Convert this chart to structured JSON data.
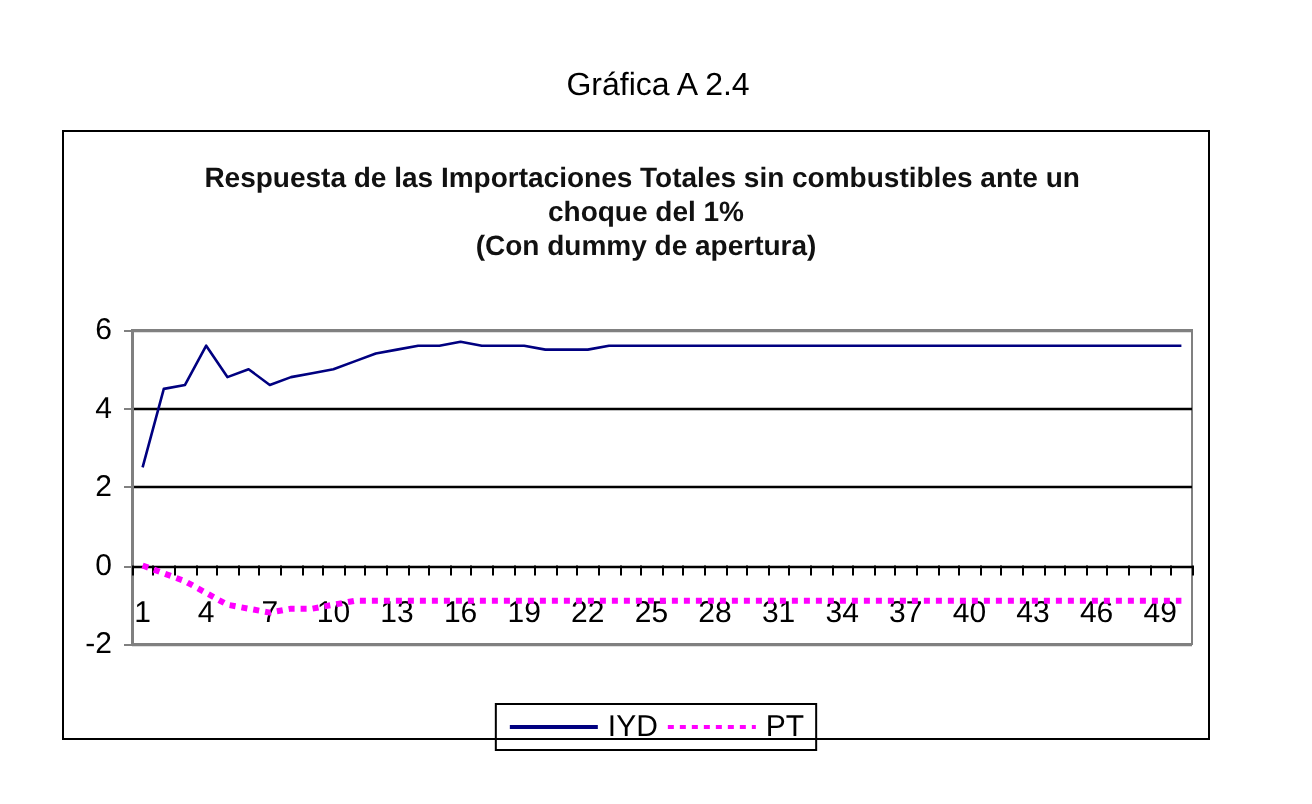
{
  "chart_data": {
    "type": "line",
    "title": "Respuesta de las Importaciones Totales sin combustibles ante un choque del 1%",
    "subtitle": "(Con dummy de apertura)",
    "annotations": [
      "Gráfica A 2.4"
    ],
    "categories": [
      "1",
      null,
      null,
      "4",
      null,
      null,
      "7",
      null,
      null,
      "10",
      null,
      null,
      "13",
      null,
      null,
      "16",
      null,
      null,
      "19",
      null,
      null,
      "22",
      null,
      null,
      "25",
      null,
      null,
      "28",
      null,
      null,
      "31",
      null,
      null,
      "34",
      null,
      null,
      "37",
      null,
      null,
      "40",
      null,
      null,
      "43",
      null,
      null,
      "46",
      null,
      null,
      "49",
      null
    ],
    "series": [
      {
        "name": "IYD",
        "color": "#000080",
        "line_style": "solid",
        "values": [
          2.5,
          4.5,
          4.6,
          5.6,
          4.8,
          5.0,
          4.6,
          4.8,
          4.9,
          5.0,
          5.2,
          5.4,
          5.5,
          5.6,
          5.6,
          5.7,
          5.6,
          5.6,
          5.6,
          5.5,
          5.5,
          5.5,
          5.6,
          5.6,
          5.6,
          5.6,
          5.6,
          5.6,
          5.6,
          5.6,
          5.6,
          5.6,
          5.6,
          5.6,
          5.6,
          5.6,
          5.6,
          5.6,
          5.6,
          5.6,
          5.6,
          5.6,
          5.6,
          5.6,
          5.6,
          5.6,
          5.6,
          5.6,
          5.6,
          5.6
        ]
      },
      {
        "name": "PT",
        "color": "#ff00ff",
        "line_style": "dotted",
        "values": [
          0,
          -0.2,
          -0.4,
          -0.7,
          -1.0,
          -1.1,
          -1.2,
          -1.1,
          -1.1,
          -1.0,
          -0.9,
          -0.9,
          -0.9,
          -0.9,
          -0.9,
          -0.9,
          -0.9,
          -0.9,
          -0.9,
          -0.9,
          -0.9,
          -0.9,
          -0.9,
          -0.9,
          -0.9,
          -0.9,
          -0.9,
          -0.9,
          -0.9,
          -0.9,
          -0.9,
          -0.9,
          -0.9,
          -0.9,
          -0.9,
          -0.9,
          -0.9,
          -0.9,
          -0.9,
          -0.9,
          -0.9,
          -0.9,
          -0.9,
          -0.9,
          -0.9,
          -0.9,
          -0.9,
          -0.9,
          -0.9,
          -0.9
        ]
      }
    ],
    "ylim": [
      -2,
      6
    ],
    "yticks": [
      -2,
      0,
      2,
      4,
      6
    ],
    "grid": "y",
    "legend": "bottom",
    "marker": "none"
  }
}
